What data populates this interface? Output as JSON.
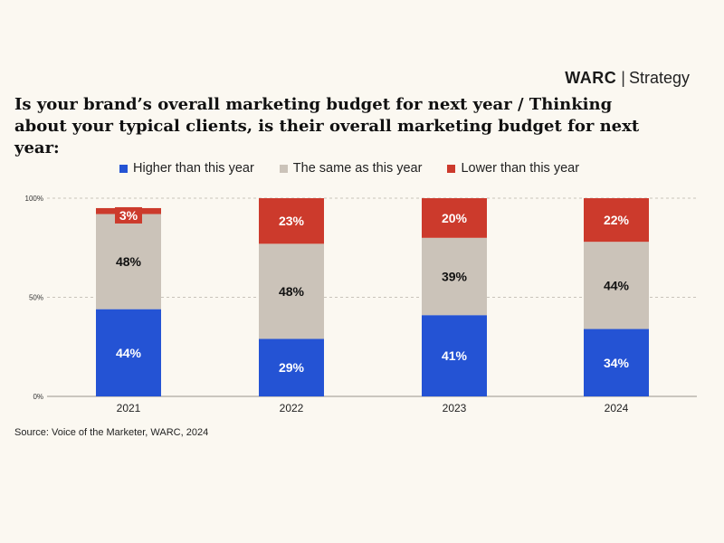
{
  "brand": {
    "name": "WARC",
    "separator": "|",
    "section": "Strategy"
  },
  "source": "Source: Voice of the Marketer, WARC, 2024",
  "colors": {
    "higher": "#2453d4",
    "same": "#cbc3b9",
    "lower": "#cc3a2c",
    "background": "#fbf8f1",
    "grid": "#c9c4bb"
  },
  "chart_data": {
    "type": "bar",
    "stacked": true,
    "title": "Is your brand’s overall marketing budget for next year / Thinking about your typical clients, is their overall marketing budget for next year:",
    "categories": [
      "2021",
      "2022",
      "2023",
      "2024"
    ],
    "series": [
      {
        "name": "Higher than this year",
        "values": [
          44,
          29,
          41,
          34
        ],
        "labels": [
          "44%",
          "29%",
          "41%",
          "34%"
        ]
      },
      {
        "name": "The same as this year",
        "values": [
          48,
          48,
          39,
          44
        ],
        "labels": [
          "48%",
          "48%",
          "39%",
          "44%"
        ]
      },
      {
        "name": "Lower than this year",
        "values": [
          3,
          23,
          20,
          22
        ],
        "labels": [
          "3%",
          "23%",
          "20%",
          "22%"
        ]
      }
    ],
    "yticks": [
      "0%",
      "50%",
      "100%"
    ],
    "ylim": [
      0,
      100
    ],
    "legend_position": "top",
    "grid": true
  }
}
